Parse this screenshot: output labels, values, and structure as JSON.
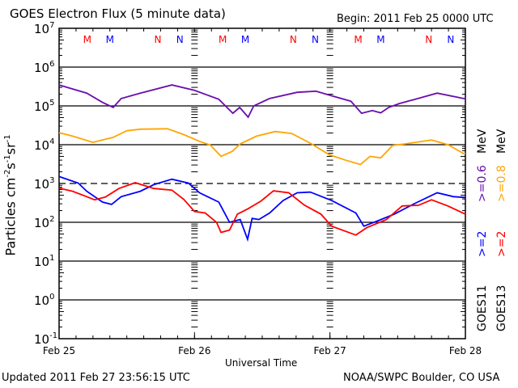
{
  "header": {
    "title": "GOES Electron Flux (5 minute data)",
    "begin": "Begin: 2011 Feb 25 0000 UTC"
  },
  "footer": {
    "updated": "Updated 2011 Feb 27 23:56:15 UTC",
    "credit": "NOAA/SWPC Boulder, CO USA"
  },
  "legend": {
    "goes11": "GOES11",
    "goes13": "GOES13",
    "g11_2": ">=2",
    "g13_2": ">=2",
    "g11_06": ">=0.6",
    "g13_08": ">=0.8",
    "mev1": "MeV",
    "mev2": "MeV"
  },
  "chart_data": {
    "type": "line",
    "title": "GOES Electron Flux (5 minute data)",
    "xlabel": "Universal Time",
    "ylabel": "Particles cm-2 s-1 sr-1",
    "ylabel_parts": {
      "main": "Particles cm",
      "e1": "-2",
      "s": "s",
      "e2": "-1",
      "sr": "sr",
      "e3": "-1"
    },
    "x_unit": "hours since 2011 Feb 25 0000 UTC",
    "xlim": [
      0,
      72
    ],
    "x_ticks": [
      {
        "hour": 0,
        "label": "Feb 25"
      },
      {
        "hour": 24,
        "label": "Feb 26"
      },
      {
        "hour": 48,
        "label": "Feb 27"
      },
      {
        "hour": 72,
        "label": "Feb 28"
      }
    ],
    "y_scale": "log",
    "ylim_log10": [
      -1,
      7
    ],
    "y_ticks": [
      {
        "base": "10",
        "exp": "7"
      },
      {
        "base": "10",
        "exp": "6"
      },
      {
        "base": "10",
        "exp": "5"
      },
      {
        "base": "10",
        "exp": "4"
      },
      {
        "base": "10",
        "exp": "3"
      },
      {
        "base": "10",
        "exp": "2"
      },
      {
        "base": "10",
        "exp": "1"
      },
      {
        "base": "10",
        "exp": "0"
      },
      {
        "base": "10",
        "exp": "-1"
      }
    ],
    "threshold_log10": 3,
    "grid": "horizontal at each decade",
    "legend_placement": "right, vertical",
    "series": [
      {
        "name": "GOES11 >=0.6 MeV",
        "color": "#6a0dad",
        "points_hour_log10flux": [
          [
            0,
            5.54
          ],
          [
            4.9,
            5.33
          ],
          [
            7.7,
            5.09
          ],
          [
            9.6,
            4.96
          ],
          [
            11,
            5.19
          ],
          [
            14.4,
            5.33
          ],
          [
            20,
            5.54
          ],
          [
            24,
            5.4
          ],
          [
            28.3,
            5.17
          ],
          [
            30.8,
            4.81
          ],
          [
            32,
            4.96
          ],
          [
            33.5,
            4.71
          ],
          [
            34.5,
            5.0
          ],
          [
            37.3,
            5.19
          ],
          [
            42.2,
            5.35
          ],
          [
            45.5,
            5.38
          ],
          [
            48.3,
            5.26
          ],
          [
            51.7,
            5.12
          ],
          [
            53.6,
            4.81
          ],
          [
            55.5,
            4.88
          ],
          [
            57,
            4.82
          ],
          [
            58.4,
            4.96
          ],
          [
            60.3,
            5.06
          ],
          [
            64.1,
            5.21
          ],
          [
            67,
            5.33
          ],
          [
            71.7,
            5.19
          ],
          [
            72,
            5.19
          ]
        ]
      },
      {
        "name": "GOES13 >=0.8 MeV",
        "color": "#ffa500",
        "points_hour_log10flux": [
          [
            0,
            4.31
          ],
          [
            2.4,
            4.22
          ],
          [
            6,
            4.06
          ],
          [
            9.6,
            4.19
          ],
          [
            12,
            4.36
          ],
          [
            14.4,
            4.4
          ],
          [
            19.2,
            4.41
          ],
          [
            22.1,
            4.26
          ],
          [
            25,
            4.08
          ],
          [
            26.8,
            3.99
          ],
          [
            28.7,
            3.7
          ],
          [
            30.7,
            3.83
          ],
          [
            32.1,
            4.02
          ],
          [
            35,
            4.22
          ],
          [
            38.3,
            4.34
          ],
          [
            41.2,
            4.29
          ],
          [
            44.5,
            4.04
          ],
          [
            47.9,
            3.74
          ],
          [
            50.8,
            3.6
          ],
          [
            53.4,
            3.49
          ],
          [
            55.1,
            3.7
          ],
          [
            57,
            3.66
          ],
          [
            59.1,
            3.98
          ],
          [
            61.3,
            4.02
          ],
          [
            66,
            4.12
          ],
          [
            68.9,
            4.0
          ],
          [
            71.7,
            3.77
          ],
          [
            72,
            3.77
          ]
        ]
      },
      {
        "name": "GOES11 >=2 MeV",
        "color": "#0000ff",
        "points_hour_log10flux": [
          [
            0,
            3.18
          ],
          [
            3.4,
            3.01
          ],
          [
            4.9,
            2.8
          ],
          [
            7.7,
            2.52
          ],
          [
            9.3,
            2.46
          ],
          [
            11,
            2.66
          ],
          [
            14.4,
            2.8
          ],
          [
            16.8,
            2.97
          ],
          [
            20,
            3.11
          ],
          [
            22.9,
            3.01
          ],
          [
            24.9,
            2.76
          ],
          [
            28.3,
            2.52
          ],
          [
            30.2,
            2.0
          ],
          [
            32.1,
            2.07
          ],
          [
            33.4,
            1.56
          ],
          [
            34.2,
            2.1
          ],
          [
            35.4,
            2.07
          ],
          [
            37.3,
            2.24
          ],
          [
            39.7,
            2.56
          ],
          [
            42.2,
            2.76
          ],
          [
            44.5,
            2.78
          ],
          [
            48.3,
            2.56
          ],
          [
            52.6,
            2.24
          ],
          [
            54,
            1.9
          ],
          [
            56.5,
            2.04
          ],
          [
            59.4,
            2.21
          ],
          [
            63.1,
            2.49
          ],
          [
            67,
            2.76
          ],
          [
            69.9,
            2.66
          ],
          [
            72,
            2.64
          ]
        ]
      },
      {
        "name": "GOES13 >=2 MeV",
        "color": "#ff0000",
        "points_hour_log10flux": [
          [
            0,
            2.88
          ],
          [
            2.4,
            2.8
          ],
          [
            4.9,
            2.66
          ],
          [
            6.3,
            2.58
          ],
          [
            8.2,
            2.65
          ],
          [
            10.6,
            2.87
          ],
          [
            13.5,
            3.02
          ],
          [
            16.8,
            2.87
          ],
          [
            20,
            2.83
          ],
          [
            22.1,
            2.59
          ],
          [
            24,
            2.28
          ],
          [
            25.9,
            2.24
          ],
          [
            27.9,
            2.0
          ],
          [
            28.7,
            1.74
          ],
          [
            30.2,
            1.8
          ],
          [
            31.6,
            2.21
          ],
          [
            33.5,
            2.35
          ],
          [
            35.8,
            2.55
          ],
          [
            38,
            2.81
          ],
          [
            40.7,
            2.76
          ],
          [
            43.5,
            2.44
          ],
          [
            46.4,
            2.21
          ],
          [
            48.3,
            1.9
          ],
          [
            52.6,
            1.67
          ],
          [
            54.5,
            1.86
          ],
          [
            58,
            2.07
          ],
          [
            60.8,
            2.42
          ],
          [
            63.7,
            2.44
          ],
          [
            66,
            2.58
          ],
          [
            68.9,
            2.42
          ],
          [
            72,
            2.21
          ]
        ]
      }
    ],
    "annotations": [
      {
        "label": "M",
        "color": "#ff0000",
        "hour": 5
      },
      {
        "label": "M",
        "color": "#0000ff",
        "hour": 9
      },
      {
        "label": "N",
        "color": "#ff0000",
        "hour": 17.5
      },
      {
        "label": "N",
        "color": "#0000ff",
        "hour": 21.4
      },
      {
        "label": "M",
        "color": "#ff0000",
        "hour": 29
      },
      {
        "label": "M",
        "color": "#0000ff",
        "hour": 33
      },
      {
        "label": "N",
        "color": "#ff0000",
        "hour": 41.5
      },
      {
        "label": "N",
        "color": "#0000ff",
        "hour": 45.4
      },
      {
        "label": "M",
        "color": "#ff0000",
        "hour": 53
      },
      {
        "label": "M",
        "color": "#0000ff",
        "hour": 57
      },
      {
        "label": "N",
        "color": "#ff0000",
        "hour": 65.5
      },
      {
        "label": "N",
        "color": "#0000ff",
        "hour": 69.4
      }
    ]
  }
}
